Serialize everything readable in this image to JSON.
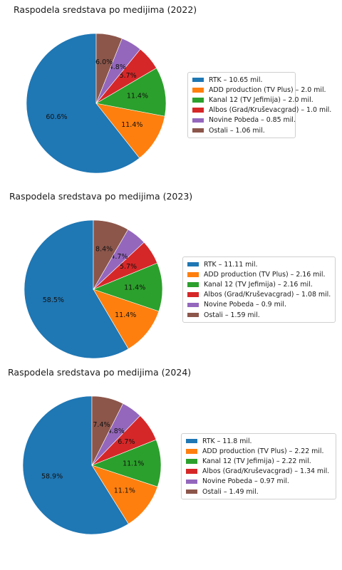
{
  "colors": {
    "blue": "#1f77b4",
    "orange": "#ff7f0e",
    "green": "#2ca02c",
    "red": "#d62728",
    "purple": "#9467bd",
    "brown": "#8c564b"
  },
  "chart_data": [
    {
      "type": "pie",
      "title": "Raspodela sredstava po medijima (2022)",
      "categories": [
        "RTK",
        "ADD production (TV Plus)",
        "Kanal 12 (TV Jefimija)",
        "Albos (Grad/Kruševacgrad)",
        "Novine Pobeda",
        "Ostali"
      ],
      "values": [
        10.65,
        2.0,
        2.0,
        1.0,
        0.85,
        1.06
      ],
      "percent_labels": [
        "60.6%",
        "11.4%",
        "11.4%",
        "5.7%",
        "4.8%",
        "6.0%"
      ],
      "legend_labels": [
        "RTK – 10.65 mil.",
        "ADD production (TV Plus) – 2.0 mil.",
        "Kanal 12 (TV Jefimija) – 2.0 mil.",
        "Albos (Grad/Kruševacgrad) – 1.0 mil.",
        "Novine Pobeda – 0.85 mil.",
        "Ostali – 1.06 mil."
      ],
      "legend_placement": "right"
    },
    {
      "type": "pie",
      "title": "Raspodela sredstava po medijima (2023)",
      "categories": [
        "RTK",
        "ADD production (TV Plus)",
        "Kanal 12 (TV Jefimija)",
        "Albos (Grad/Kruševacgrad)",
        "Novine Pobeda",
        "Ostali"
      ],
      "values": [
        11.11,
        2.16,
        2.16,
        1.08,
        0.9,
        1.59
      ],
      "percent_labels": [
        "58.5%",
        "11.4%",
        "11.4%",
        "5.7%",
        "4.7%",
        "8.4%"
      ],
      "legend_labels": [
        "RTK – 11.11 mil.",
        "ADD production (TV Plus) – 2.16 mil.",
        "Kanal 12 (TV Jefimija) – 2.16 mil.",
        "Albos (Grad/Kruševacgrad) – 1.08 mil.",
        "Novine Pobeda – 0.9 mil.",
        "Ostali – 1.59 mil."
      ],
      "legend_placement": "right"
    },
    {
      "type": "pie",
      "title": "Raspodela sredstava po medijima (2024)",
      "categories": [
        "RTK",
        "ADD production (TV Plus)",
        "Kanal 12 (TV Jefimija)",
        "Albos (Grad/Kruševacgrad)",
        "Novine Pobeda",
        "Ostali"
      ],
      "values": [
        11.8,
        2.22,
        2.22,
        1.34,
        0.97,
        1.49
      ],
      "percent_labels": [
        "58.9%",
        "11.1%",
        "11.1%",
        "6.7%",
        "4.8%",
        "7.4%"
      ],
      "legend_labels": [
        "RTK – 11.8 mil.",
        "ADD production (TV Plus) – 2.22 mil.",
        "Kanal 12 (TV Jefimija) – 2.22 mil.",
        "Albos (Grad/Kruševacgrad) – 1.34 mil.",
        "Novine Pobeda – 0.97 mil.",
        "Ostali – 1.49 mil."
      ],
      "legend_placement": "right"
    }
  ]
}
